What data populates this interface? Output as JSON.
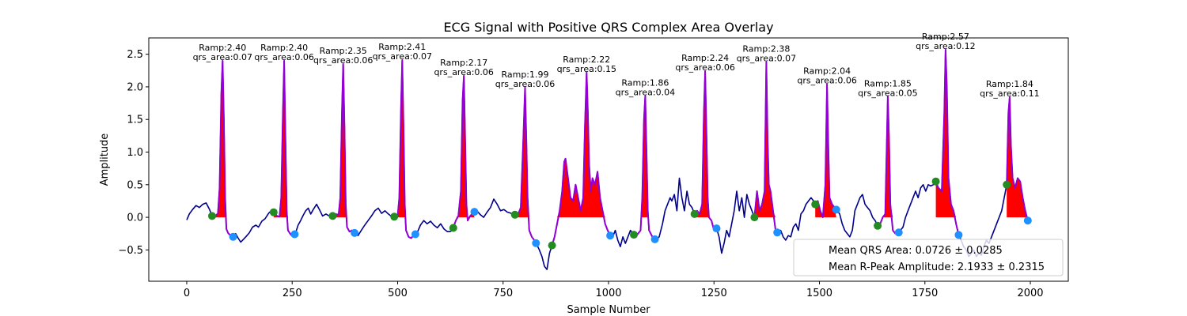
{
  "chart_data": {
    "type": "line",
    "title": "ECG Signal with Positive QRS Complex Area Overlay",
    "xlabel": "Sample Number",
    "ylabel": "Amplitude",
    "xlim": [
      -90,
      2090
    ],
    "ylim": [
      -0.98,
      2.75
    ],
    "x_ticks": [
      0,
      250,
      500,
      750,
      1000,
      1250,
      1500,
      1750,
      2000
    ],
    "y_ticks": [
      -0.5,
      0.0,
      0.5,
      1.0,
      1.5,
      2.0,
      2.5
    ],
    "x_tick_labels": [
      "0",
      "250",
      "500",
      "750",
      "1000",
      "1250",
      "1500",
      "1750",
      "2000"
    ],
    "y_tick_labels": [
      "−0.5",
      "0.0",
      "0.5",
      "1.0",
      "1.5",
      "2.0",
      "2.5"
    ],
    "grid": false,
    "colors": {
      "signal": "#00008B",
      "qrs_segment": "#9400D3",
      "qrs_fill": "#FF0000",
      "onset_marker": "#228B22",
      "offset_marker": "#1E90FF"
    },
    "signal": [
      [
        0,
        -0.04
      ],
      [
        6,
        0.05
      ],
      [
        14,
        0.12
      ],
      [
        22,
        0.18
      ],
      [
        30,
        0.15
      ],
      [
        38,
        0.2
      ],
      [
        46,
        0.22
      ],
      [
        54,
        0.12
      ],
      [
        60,
        0.02
      ],
      [
        68,
        0.02
      ],
      [
        74,
        0.06
      ],
      [
        78,
        0.45
      ],
      [
        82,
        1.9
      ],
      [
        85,
        2.4
      ],
      [
        88,
        1.5
      ],
      [
        91,
        0.3
      ],
      [
        94,
        -0.18
      ],
      [
        98,
        -0.24
      ],
      [
        104,
        -0.28
      ],
      [
        110,
        -0.3
      ],
      [
        116,
        -0.25
      ],
      [
        122,
        -0.32
      ],
      [
        128,
        -0.38
      ],
      [
        134,
        -0.34
      ],
      [
        140,
        -0.3
      ],
      [
        148,
        -0.24
      ],
      [
        156,
        -0.15
      ],
      [
        164,
        -0.12
      ],
      [
        170,
        -0.15
      ],
      [
        178,
        -0.06
      ],
      [
        186,
        -0.02
      ],
      [
        194,
        0.06
      ],
      [
        200,
        0.1
      ],
      [
        208,
        0.07
      ],
      [
        214,
        0.02
      ],
      [
        220,
        0.01
      ],
      [
        224,
        0.3
      ],
      [
        228,
        1.6
      ],
      [
        231,
        2.4
      ],
      [
        234,
        1.2
      ],
      [
        237,
        0.1
      ],
      [
        240,
        -0.2
      ],
      [
        246,
        -0.26
      ],
      [
        252,
        -0.3
      ],
      [
        258,
        -0.24
      ],
      [
        264,
        -0.12
      ],
      [
        270,
        -0.05
      ],
      [
        276,
        0.03
      ],
      [
        282,
        0.1
      ],
      [
        288,
        0.14
      ],
      [
        294,
        0.05
      ],
      [
        300,
        0.12
      ],
      [
        308,
        0.2
      ],
      [
        316,
        0.1
      ],
      [
        322,
        0.02
      ],
      [
        330,
        0.05
      ],
      [
        338,
        0.02
      ],
      [
        346,
        0.02
      ],
      [
        352,
        0.05
      ],
      [
        360,
        0.04
      ],
      [
        364,
        0.3
      ],
      [
        368,
        1.6
      ],
      [
        371,
        2.35
      ],
      [
        374,
        1.4
      ],
      [
        377,
        0.2
      ],
      [
        380,
        -0.15
      ],
      [
        386,
        -0.22
      ],
      [
        392,
        -0.2
      ],
      [
        398,
        -0.24
      ],
      [
        406,
        -0.28
      ],
      [
        414,
        -0.2
      ],
      [
        422,
        -0.12
      ],
      [
        430,
        -0.05
      ],
      [
        438,
        0.02
      ],
      [
        446,
        0.1
      ],
      [
        454,
        0.14
      ],
      [
        462,
        0.06
      ],
      [
        470,
        0.1
      ],
      [
        478,
        0.05
      ],
      [
        484,
        0.02
      ],
      [
        492,
        0.01
      ],
      [
        500,
        0.02
      ],
      [
        504,
        0.3
      ],
      [
        508,
        1.7
      ],
      [
        511,
        2.41
      ],
      [
        514,
        1.4
      ],
      [
        517,
        0.2
      ],
      [
        520,
        -0.2
      ],
      [
        526,
        -0.3
      ],
      [
        532,
        -0.32
      ],
      [
        538,
        -0.28
      ],
      [
        546,
        -0.24
      ],
      [
        554,
        -0.12
      ],
      [
        562,
        -0.05
      ],
      [
        570,
        -0.1
      ],
      [
        578,
        -0.06
      ],
      [
        586,
        -0.12
      ],
      [
        594,
        -0.16
      ],
      [
        602,
        -0.1
      ],
      [
        610,
        -0.18
      ],
      [
        618,
        -0.22
      ],
      [
        624,
        -0.22
      ],
      [
        630,
        -0.2
      ],
      [
        638,
        -0.05
      ],
      [
        644,
        0.02
      ],
      [
        650,
        0.4
      ],
      [
        654,
        1.8
      ],
      [
        657,
        2.17
      ],
      [
        660,
        1.2
      ],
      [
        663,
        0.2
      ],
      [
        666,
        -0.05
      ],
      [
        672,
        0.02
      ],
      [
        680,
        0.08
      ],
      [
        688,
        0.1
      ],
      [
        696,
        0.04
      ],
      [
        704,
        0.0
      ],
      [
        712,
        0.08
      ],
      [
        720,
        0.15
      ],
      [
        728,
        0.28
      ],
      [
        736,
        0.2
      ],
      [
        744,
        0.1
      ],
      [
        752,
        0.12
      ],
      [
        760,
        0.08
      ],
      [
        770,
        0.06
      ],
      [
        778,
        0.04
      ],
      [
        786,
        0.05
      ],
      [
        792,
        0.15
      ],
      [
        798,
        1.2
      ],
      [
        802,
        1.99
      ],
      [
        805,
        1.2
      ],
      [
        808,
        0.3
      ],
      [
        812,
        -0.2
      ],
      [
        818,
        -0.3
      ],
      [
        824,
        -0.35
      ],
      [
        830,
        -0.42
      ],
      [
        836,
        -0.5
      ],
      [
        842,
        -0.6
      ],
      [
        848,
        -0.75
      ],
      [
        854,
        -0.8
      ],
      [
        860,
        -0.55
      ],
      [
        866,
        -0.43
      ],
      [
        872,
        -0.3
      ],
      [
        878,
        -0.1
      ],
      [
        884,
        0.1
      ],
      [
        890,
        0.4
      ],
      [
        895,
        0.85
      ],
      [
        898,
        0.9
      ],
      [
        904,
        0.6
      ],
      [
        910,
        0.3
      ],
      [
        916,
        0.25
      ],
      [
        922,
        0.5
      ],
      [
        928,
        0.3
      ],
      [
        934,
        0.1
      ],
      [
        940,
        0.3
      ],
      [
        944,
        1.4
      ],
      [
        948,
        2.22
      ],
      [
        951,
        1.6
      ],
      [
        954,
        0.8
      ],
      [
        958,
        0.4
      ],
      [
        962,
        0.6
      ],
      [
        968,
        0.5
      ],
      [
        974,
        0.7
      ],
      [
        980,
        0.3
      ],
      [
        986,
        0.1
      ],
      [
        992,
        -0.1
      ],
      [
        998,
        -0.2
      ],
      [
        1004,
        -0.28
      ],
      [
        1010,
        -0.3
      ],
      [
        1016,
        -0.2
      ],
      [
        1022,
        -0.35
      ],
      [
        1028,
        -0.45
      ],
      [
        1034,
        -0.3
      ],
      [
        1040,
        -0.4
      ],
      [
        1046,
        -0.3
      ],
      [
        1052,
        -0.2
      ],
      [
        1058,
        -0.25
      ],
      [
        1064,
        -0.3
      ],
      [
        1070,
        -0.25
      ],
      [
        1076,
        -0.2
      ],
      [
        1080,
        0.3
      ],
      [
        1084,
        1.5
      ],
      [
        1087,
        1.86
      ],
      [
        1090,
        1.0
      ],
      [
        1093,
        0.1
      ],
      [
        1096,
        -0.2
      ],
      [
        1104,
        -0.3
      ],
      [
        1112,
        -0.35
      ],
      [
        1120,
        -0.3
      ],
      [
        1128,
        -0.1
      ],
      [
        1134,
        0.1
      ],
      [
        1140,
        0.2
      ],
      [
        1146,
        0.3
      ],
      [
        1150,
        0.25
      ],
      [
        1156,
        0.35
      ],
      [
        1162,
        0.1
      ],
      [
        1168,
        0.6
      ],
      [
        1174,
        0.3
      ],
      [
        1180,
        0.1
      ],
      [
        1186,
        0.4
      ],
      [
        1192,
        0.2
      ],
      [
        1198,
        0.15
      ],
      [
        1204,
        0.05
      ],
      [
        1210,
        0.1
      ],
      [
        1216,
        0.05
      ],
      [
        1222,
        0.2
      ],
      [
        1226,
        1.6
      ],
      [
        1229,
        2.24
      ],
      [
        1232,
        1.3
      ],
      [
        1235,
        0.3
      ],
      [
        1238,
        0.0
      ],
      [
        1244,
        -0.05
      ],
      [
        1250,
        -0.2
      ],
      [
        1256,
        -0.17
      ],
      [
        1262,
        -0.3
      ],
      [
        1268,
        -0.55
      ],
      [
        1274,
        -0.4
      ],
      [
        1280,
        -0.2
      ],
      [
        1286,
        -0.3
      ],
      [
        1292,
        -0.1
      ],
      [
        1298,
        0.1
      ],
      [
        1304,
        0.4
      ],
      [
        1310,
        0.1
      ],
      [
        1316,
        0.3
      ],
      [
        1322,
        0.0
      ],
      [
        1328,
        0.35
      ],
      [
        1334,
        0.2
      ],
      [
        1340,
        0.1
      ],
      [
        1346,
        0.0
      ],
      [
        1352,
        0.4
      ],
      [
        1358,
        0.1
      ],
      [
        1364,
        0.2
      ],
      [
        1370,
        0.4
      ],
      [
        1374,
        2.38
      ],
      [
        1377,
        1.2
      ],
      [
        1380,
        0.5
      ],
      [
        1384,
        0.4
      ],
      [
        1390,
        0.1
      ],
      [
        1396,
        -0.2
      ],
      [
        1402,
        -0.25
      ],
      [
        1408,
        -0.2
      ],
      [
        1414,
        -0.3
      ],
      [
        1420,
        -0.35
      ],
      [
        1426,
        -0.28
      ],
      [
        1432,
        -0.3
      ],
      [
        1438,
        -0.15
      ],
      [
        1444,
        -0.1
      ],
      [
        1450,
        -0.2
      ],
      [
        1456,
        0.05
      ],
      [
        1462,
        0.1
      ],
      [
        1468,
        0.2
      ],
      [
        1474,
        0.25
      ],
      [
        1480,
        0.3
      ],
      [
        1486,
        0.25
      ],
      [
        1490,
        0.2
      ],
      [
        1496,
        0.25
      ],
      [
        1502,
        0.1
      ],
      [
        1508,
        0.0
      ],
      [
        1514,
        0.5
      ],
      [
        1518,
        2.04
      ],
      [
        1521,
        1.1
      ],
      [
        1524,
        0.3
      ],
      [
        1530,
        0.2
      ],
      [
        1536,
        0.15
      ],
      [
        1542,
        0.1
      ],
      [
        1548,
        0.05
      ],
      [
        1554,
        -0.1
      ],
      [
        1560,
        -0.2
      ],
      [
        1566,
        -0.25
      ],
      [
        1572,
        -0.3
      ],
      [
        1578,
        -0.2
      ],
      [
        1584,
        0.1
      ],
      [
        1590,
        0.2
      ],
      [
        1596,
        0.3
      ],
      [
        1602,
        0.35
      ],
      [
        1608,
        0.2
      ],
      [
        1614,
        0.15
      ],
      [
        1620,
        0.1
      ],
      [
        1626,
        0.0
      ],
      [
        1632,
        -0.05
      ],
      [
        1638,
        -0.13
      ],
      [
        1644,
        -0.1
      ],
      [
        1650,
        0.0
      ],
      [
        1656,
        0.05
      ],
      [
        1662,
        1.85
      ],
      [
        1665,
        1.2
      ],
      [
        1668,
        0.2
      ],
      [
        1674,
        -0.2
      ],
      [
        1680,
        -0.25
      ],
      [
        1686,
        -0.25
      ],
      [
        1692,
        -0.2
      ],
      [
        1698,
        -0.15
      ],
      [
        1704,
        0.0
      ],
      [
        1710,
        0.1
      ],
      [
        1716,
        0.2
      ],
      [
        1722,
        0.3
      ],
      [
        1728,
        0.4
      ],
      [
        1734,
        0.3
      ],
      [
        1740,
        0.45
      ],
      [
        1746,
        0.5
      ],
      [
        1752,
        0.4
      ],
      [
        1758,
        0.5
      ],
      [
        1764,
        0.48
      ],
      [
        1770,
        0.5
      ],
      [
        1776,
        0.55
      ],
      [
        1782,
        0.45
      ],
      [
        1790,
        0.4
      ],
      [
        1796,
        1.6
      ],
      [
        1799,
        2.57
      ],
      [
        1802,
        2.0
      ],
      [
        1806,
        0.6
      ],
      [
        1812,
        0.2
      ],
      [
        1818,
        0.1
      ],
      [
        1824,
        -0.1
      ],
      [
        1830,
        -0.27
      ],
      [
        1836,
        -0.35
      ],
      [
        1842,
        -0.45
      ],
      [
        1848,
        -0.5
      ],
      [
        1854,
        -0.6
      ],
      [
        1860,
        -0.55
      ],
      [
        1866,
        -0.5
      ],
      [
        1872,
        -0.6
      ],
      [
        1878,
        -0.55
      ],
      [
        1884,
        -0.58
      ],
      [
        1890,
        -0.45
      ],
      [
        1896,
        -0.35
      ],
      [
        1902,
        -0.4
      ],
      [
        1908,
        -0.3
      ],
      [
        1914,
        -0.2
      ],
      [
        1920,
        -0.1
      ],
      [
        1926,
        0.0
      ],
      [
        1932,
        0.1
      ],
      [
        1938,
        0.3
      ],
      [
        1944,
        0.5
      ],
      [
        1948,
        1.6
      ],
      [
        1951,
        1.84
      ],
      [
        1954,
        1.1
      ],
      [
        1958,
        0.6
      ],
      [
        1964,
        0.45
      ],
      [
        1970,
        0.6
      ],
      [
        1976,
        0.55
      ],
      [
        1982,
        0.3
      ],
      [
        1988,
        0.1
      ],
      [
        1994,
        -0.05
      ],
      [
        1998,
        -0.1
      ]
    ],
    "beats": [
      {
        "onset": 60,
        "offset": 110,
        "peak_x": 85,
        "ramp": 2.4,
        "qrs_area": 0.07
      },
      {
        "onset": 206,
        "offset": 256,
        "peak_x": 231,
        "ramp": 2.4,
        "qrs_area": 0.06
      },
      {
        "onset": 346,
        "offset": 398,
        "peak_x": 371,
        "ramp": 2.35,
        "qrs_area": 0.06
      },
      {
        "onset": 492,
        "offset": 542,
        "peak_x": 511,
        "ramp": 2.41,
        "qrs_area": 0.07
      },
      {
        "onset": 632,
        "offset": 682,
        "peak_x": 657,
        "ramp": 2.17,
        "qrs_area": 0.06
      },
      {
        "onset": 778,
        "offset": 828,
        "peak_x": 802,
        "ramp": 1.99,
        "qrs_area": 0.06
      },
      {
        "onset": 866,
        "offset": 1004,
        "peak_x": 948,
        "ramp": 2.22,
        "qrs_area": 0.15
      },
      {
        "onset": 1060,
        "offset": 1110,
        "peak_x": 1087,
        "ramp": 1.86,
        "qrs_area": 0.04
      },
      {
        "onset": 1204,
        "offset": 1256,
        "peak_x": 1229,
        "ramp": 2.24,
        "qrs_area": 0.06
      },
      {
        "onset": 1346,
        "offset": 1400,
        "peak_x": 1374,
        "ramp": 2.38,
        "qrs_area": 0.07
      },
      {
        "onset": 1490,
        "offset": 1540,
        "peak_x": 1518,
        "ramp": 2.04,
        "qrs_area": 0.06
      },
      {
        "onset": 1638,
        "offset": 1688,
        "peak_x": 1662,
        "ramp": 1.85,
        "qrs_area": 0.05
      },
      {
        "onset": 1776,
        "offset": 1830,
        "peak_x": 1799,
        "ramp": 2.57,
        "qrs_area": 0.12
      },
      {
        "onset": 1944,
        "offset": 1994,
        "peak_x": 1951,
        "ramp": 1.84,
        "qrs_area": 0.11
      }
    ],
    "annotation_prefix_ramp": "Ramp:",
    "annotation_prefix_area": "qrs_area:",
    "legend": {
      "placement": "lower-right",
      "entries": [
        "Mean QRS Area: 0.0726 ± 0.0285",
        "Mean R-Peak Amplitude: 2.1933 ± 0.2315"
      ]
    }
  }
}
